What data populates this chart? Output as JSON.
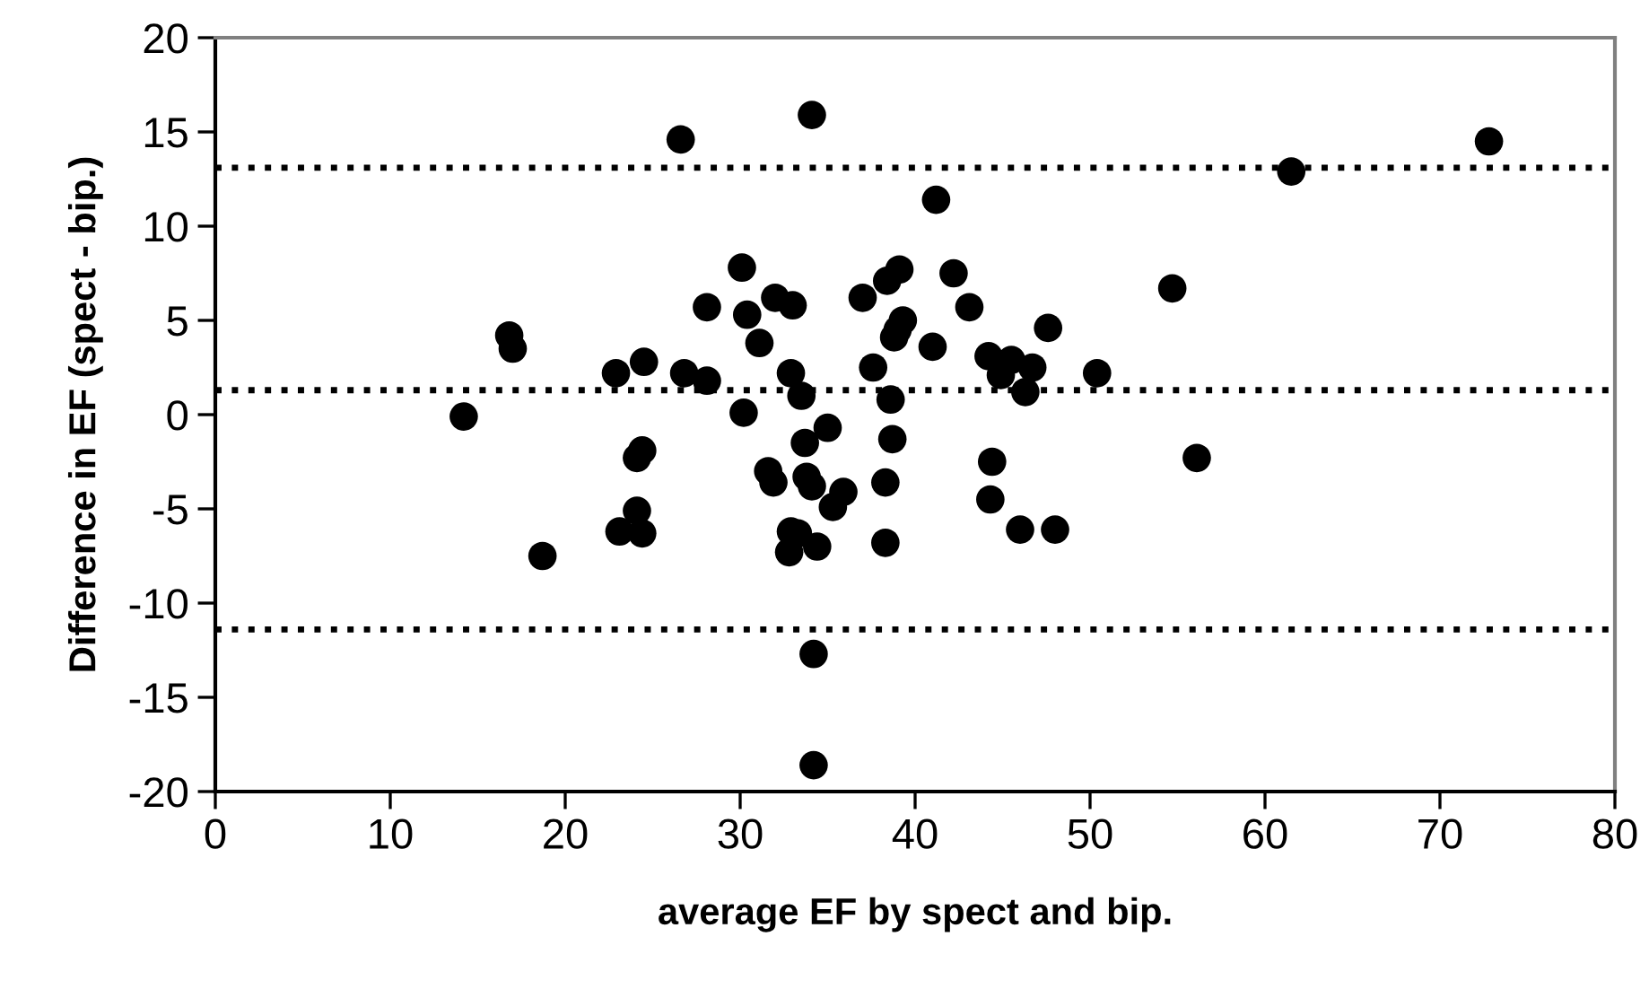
{
  "chart_data": {
    "type": "scatter",
    "xlabel": "average EF by spect and bip.",
    "ylabel": "Difference in EF (spect - bip.)",
    "x": [
      14.2,
      16.8,
      17.0,
      18.7,
      22.9,
      23.1,
      24.1,
      24.1,
      24.4,
      24.5,
      24.4,
      26.6,
      26.8,
      28.1,
      28.1,
      30.1,
      30.2,
      30.4,
      31.1,
      31.6,
      31.9,
      32.0,
      32.8,
      32.9,
      32.9,
      33.0,
      33.3,
      33.5,
      33.7,
      33.8,
      34.1,
      34.1,
      34.4,
      34.2,
      34.2,
      35.0,
      35.3,
      35.9,
      37.0,
      37.6,
      38.3,
      38.3,
      38.4,
      38.6,
      38.7,
      38.8,
      39.1,
      39.0,
      39.3,
      41.0,
      41.2,
      42.2,
      43.1,
      44.2,
      44.3,
      44.4,
      44.9,
      45.5,
      46.0,
      46.3,
      46.7,
      47.6,
      48.0,
      50.4,
      54.7,
      56.1,
      61.5,
      72.8
    ],
    "series": [
      {
        "color": "#000000",
        "values": [
          -0.1,
          4.2,
          3.5,
          -7.5,
          2.2,
          -6.2,
          -5.1,
          -2.3,
          -1.9,
          2.8,
          -6.3,
          14.6,
          2.2,
          1.8,
          5.7,
          7.8,
          0.1,
          5.3,
          3.8,
          -3.0,
          -3.6,
          6.2,
          -7.3,
          -6.2,
          2.2,
          5.8,
          -6.3,
          1.0,
          -1.5,
          -3.3,
          -3.8,
          15.9,
          -7.0,
          -12.7,
          -18.6,
          -0.7,
          -4.9,
          -4.1,
          6.2,
          2.5,
          -3.6,
          -6.8,
          7.1,
          0.8,
          -1.3,
          4.1,
          7.7,
          4.5,
          5.0,
          3.6,
          11.4,
          7.5,
          5.7,
          3.1,
          -4.5,
          -2.5,
          2.1,
          2.9,
          -6.1,
          1.2,
          2.5,
          4.6,
          -6.1,
          2.2,
          6.7,
          -2.3,
          12.9,
          14.5
        ]
      }
    ],
    "marker": "circle",
    "xlim": [
      0,
      80
    ],
    "xticks": [
      0,
      10,
      20,
      30,
      40,
      50,
      60,
      70,
      80
    ],
    "ylim": [
      -20,
      20
    ],
    "yticks": [
      -20,
      -15,
      -10,
      -5,
      0,
      5,
      10,
      15,
      20
    ],
    "ref_lines": [
      {
        "axis": "y",
        "value": 13.1,
        "color": "#000000",
        "line_style": "dotted"
      },
      {
        "axis": "y",
        "value": 1.3,
        "color": "#000000",
        "line_style": "dotted"
      },
      {
        "axis": "y",
        "value": -11.4,
        "color": "#000000",
        "line_style": "dotted"
      }
    ],
    "grid": false,
    "legend": false
  }
}
